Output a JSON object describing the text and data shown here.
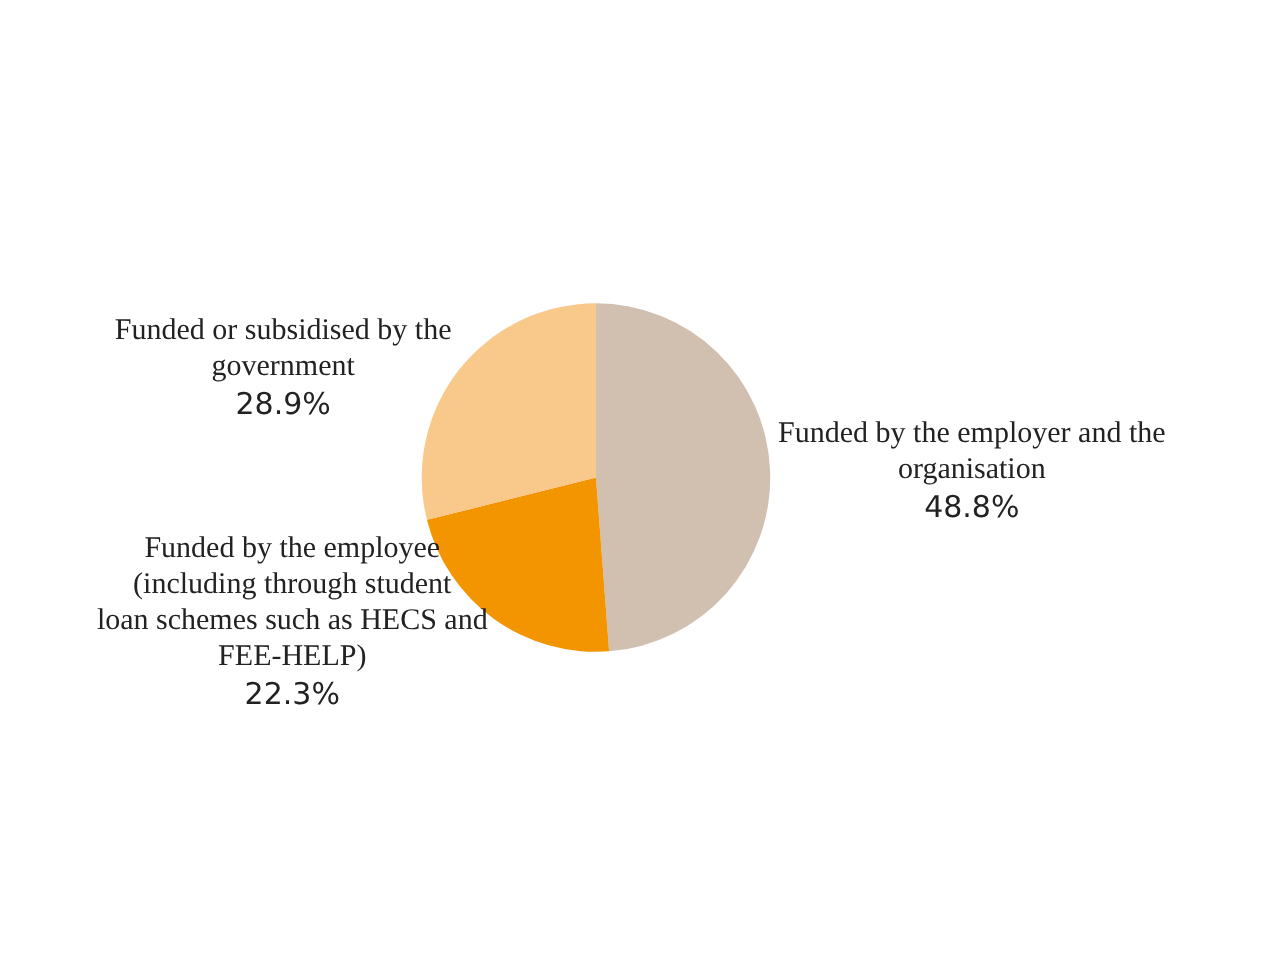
{
  "chart_data": {
    "type": "pie",
    "categories": [
      "Funded by the employer and the organisation",
      "Funded by the employee (including through student loan schemes such as HECS and FEE-HELP)",
      "Funded or subsidised by the government"
    ],
    "values": [
      48.8,
      22.3,
      28.9
    ],
    "value_labels": [
      "48.8%",
      "22.3%",
      "28.9%"
    ],
    "colors": [
      "#d1bfb0",
      "#f39500",
      "#f9c98c"
    ],
    "legend": false
  }
}
